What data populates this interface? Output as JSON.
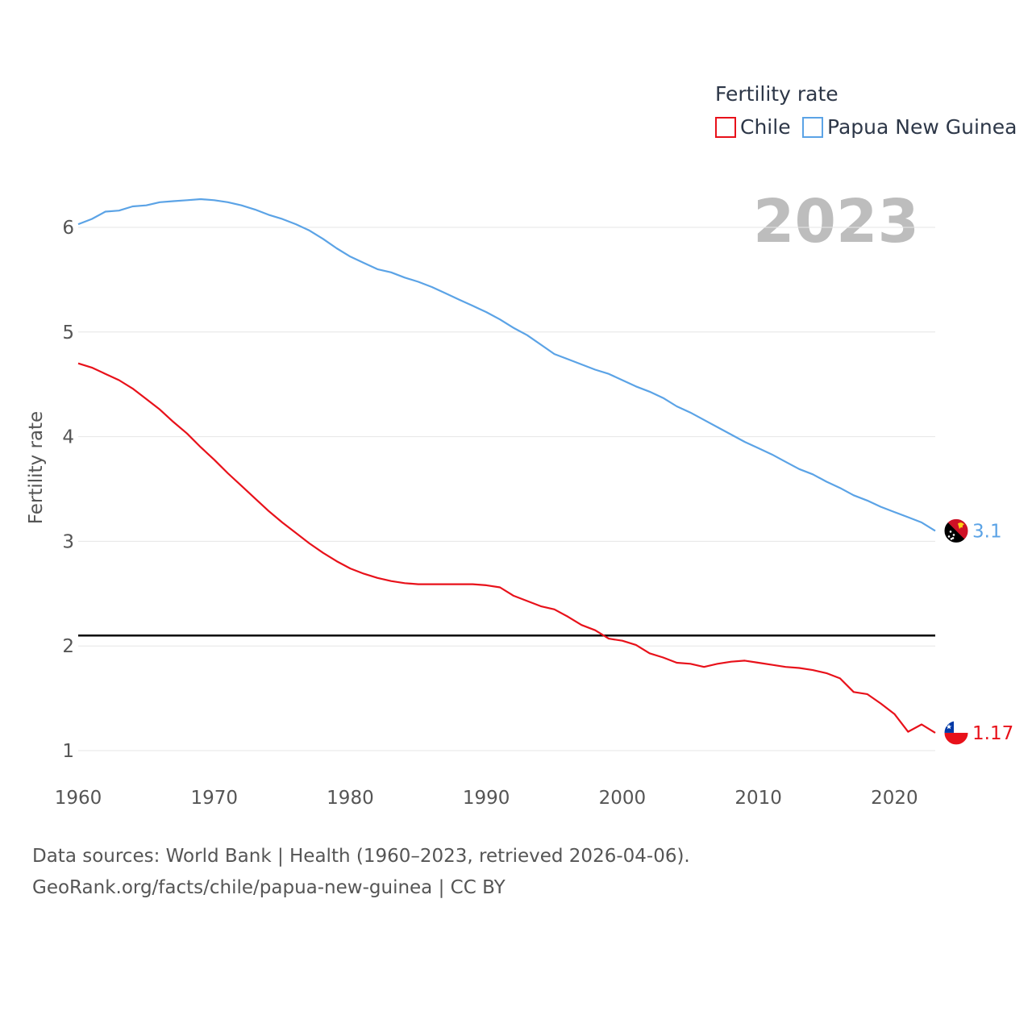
{
  "chart_data": {
    "type": "line",
    "legend_title": "Fertility rate",
    "ylabel": "Fertility rate",
    "year_label": "2023",
    "xlim": [
      1960,
      2023
    ],
    "ylim": [
      0.8,
      6.6
    ],
    "x_ticks": [
      "1960",
      "1970",
      "1980",
      "1990",
      "2000",
      "2010",
      "2020"
    ],
    "y_ticks": [
      "1",
      "2",
      "3",
      "4",
      "5",
      "6"
    ],
    "reference_line": 2.1,
    "x": [
      1960,
      1961,
      1962,
      1963,
      1964,
      1965,
      1966,
      1967,
      1968,
      1969,
      1970,
      1971,
      1972,
      1973,
      1974,
      1975,
      1976,
      1977,
      1978,
      1979,
      1980,
      1981,
      1982,
      1983,
      1984,
      1985,
      1986,
      1987,
      1988,
      1989,
      1990,
      1991,
      1992,
      1993,
      1994,
      1995,
      1996,
      1997,
      1998,
      1999,
      2000,
      2001,
      2002,
      2003,
      2004,
      2005,
      2006,
      2007,
      2008,
      2009,
      2010,
      2011,
      2012,
      2013,
      2014,
      2015,
      2016,
      2017,
      2018,
      2019,
      2020,
      2021,
      2022,
      2023
    ],
    "series": [
      {
        "name": "Chile",
        "color": "#e8111a",
        "end_label": "1.17",
        "flag": "chile-flag",
        "values": [
          4.7,
          4.66,
          4.6,
          4.54,
          4.46,
          4.36,
          4.26,
          4.14,
          4.03,
          3.9,
          3.78,
          3.65,
          3.53,
          3.41,
          3.29,
          3.18,
          3.08,
          2.98,
          2.89,
          2.81,
          2.74,
          2.69,
          2.65,
          2.62,
          2.6,
          2.59,
          2.59,
          2.59,
          2.59,
          2.59,
          2.58,
          2.56,
          2.48,
          2.43,
          2.38,
          2.35,
          2.28,
          2.2,
          2.15,
          2.07,
          2.05,
          2.01,
          1.93,
          1.89,
          1.84,
          1.83,
          1.8,
          1.83,
          1.85,
          1.86,
          1.84,
          1.82,
          1.8,
          1.79,
          1.77,
          1.74,
          1.69,
          1.56,
          1.54,
          1.45,
          1.35,
          1.18,
          1.25,
          1.17
        ]
      },
      {
        "name": "Papua New Guinea",
        "color": "#5ba3e6",
        "end_label": "3.1",
        "flag": "papua-new-guinea-flag",
        "values": [
          6.03,
          6.08,
          6.15,
          6.16,
          6.2,
          6.21,
          6.24,
          6.25,
          6.26,
          6.27,
          6.26,
          6.24,
          6.21,
          6.17,
          6.12,
          6.08,
          6.03,
          5.97,
          5.89,
          5.8,
          5.72,
          5.66,
          5.6,
          5.57,
          5.52,
          5.48,
          5.43,
          5.37,
          5.31,
          5.25,
          5.19,
          5.12,
          5.04,
          4.97,
          4.88,
          4.79,
          4.74,
          4.69,
          4.64,
          4.6,
          4.54,
          4.48,
          4.43,
          4.37,
          4.29,
          4.23,
          4.16,
          4.09,
          4.02,
          3.95,
          3.89,
          3.83,
          3.76,
          3.69,
          3.64,
          3.57,
          3.51,
          3.44,
          3.39,
          3.33,
          3.28,
          3.23,
          3.18,
          3.1
        ]
      }
    ],
    "source_line1": "Data sources: World Bank | Health (1960–2023, retrieved 2026-04-06).",
    "source_line2": "GeoRank.org/facts/chile/papua-new-guinea | CC BY"
  }
}
